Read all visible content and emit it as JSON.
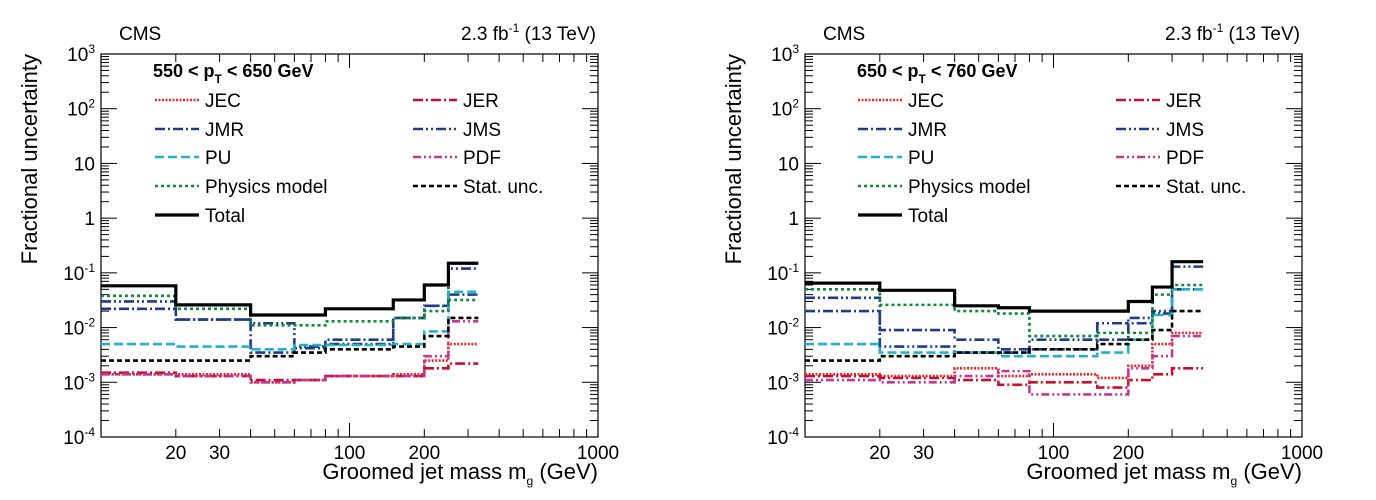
{
  "figure": {
    "y_label": "Fractional uncertainty",
    "x_label_main": "Groomed jet mass m",
    "x_label_sub": "g",
    "x_label_unit": " (GeV)",
    "y_ticks": [
      {
        "base": "10",
        "exp": "3",
        "value": 1000
      },
      {
        "base": "10",
        "exp": "2",
        "value": 100
      },
      {
        "base": "10",
        "exp": "",
        "value": 10
      },
      {
        "base": "1",
        "exp": "",
        "value": 1
      },
      {
        "base": "10",
        "exp": "-1",
        "value": 0.1
      },
      {
        "base": "10",
        "exp": "-2",
        "value": 0.01
      },
      {
        "base": "10",
        "exp": "-3",
        "value": 0.001
      },
      {
        "base": "10",
        "exp": "-4",
        "value": 0.0001
      }
    ],
    "x_ticks": [
      "20",
      "30",
      "100",
      "200",
      "1000"
    ],
    "x_tick_values": [
      20,
      30,
      100,
      200,
      1000
    ],
    "lumi_text_a": "2.3 fb",
    "lumi_text_sup": "-1",
    "lumi_text_b": " (13 TeV)",
    "experiment": "CMS"
  },
  "chart_data": [
    {
      "type": "line",
      "pt_bin_a": "550 < p",
      "pt_bin_sub": "T",
      "pt_bin_b": " < 650 GeV",
      "xlim": [
        10,
        1000
      ],
      "ylim": [
        0.0001,
        1000
      ],
      "x_scale": "log",
      "y_scale": "log",
      "bin_edges": [
        10,
        20,
        40,
        60,
        80,
        150,
        200,
        250,
        330
      ],
      "series": [
        {
          "name": "JEC",
          "color": "#e8282a",
          "dash": "2,1.5",
          "values": [
            0.0014,
            0.0014,
            0.001,
            0.0011,
            0.0013,
            0.0014,
            0.0025,
            0.005
          ]
        },
        {
          "name": "JER",
          "color": "#c8102e",
          "dash": "10,3,2,3",
          "values": [
            0.0015,
            0.0013,
            0.0011,
            0.0011,
            0.0013,
            0.0013,
            0.0018,
            0.0022
          ]
        },
        {
          "name": "JMR",
          "color": "#1f3c88",
          "dash": "10,3,2,3",
          "values": [
            0.022,
            0.014,
            0.0035,
            0.0042,
            0.006,
            0.015,
            0.025,
            0.04
          ]
        },
        {
          "name": "JMS",
          "color": "#1f3c88",
          "dash": "10,3,2,3,2,3",
          "values": [
            0.03,
            0.014,
            0.012,
            0.0045,
            0.005,
            0.015,
            0.025,
            0.12
          ]
        },
        {
          "name": "PU",
          "color": "#21b3c6",
          "dash": "9,4",
          "values": [
            0.005,
            0.0045,
            0.004,
            0.0048,
            0.0048,
            0.005,
            0.0085,
            0.045
          ]
        },
        {
          "name": "PDF",
          "color": "#c0369b",
          "dash": "8,3,2,3,2,3",
          "values": [
            0.0014,
            0.0013,
            0.001,
            0.0011,
            0.0013,
            0.0013,
            0.003,
            0.013
          ]
        },
        {
          "name": "Physics model",
          "color": "#0e8a3f",
          "dash": "3,3",
          "values": [
            0.038,
            0.022,
            0.011,
            0.011,
            0.013,
            0.015,
            0.02,
            0.032
          ]
        },
        {
          "name": "Stat. unc.",
          "color": "#000000",
          "dash": "5,3",
          "values": [
            0.0025,
            0.0025,
            0.003,
            0.0035,
            0.004,
            0.0045,
            0.007,
            0.015
          ]
        },
        {
          "name": "Total",
          "color": "#000000",
          "dash": "",
          "values": [
            0.058,
            0.026,
            0.017,
            0.017,
            0.022,
            0.032,
            0.06,
            0.15
          ]
        }
      ]
    },
    {
      "type": "line",
      "pt_bin_a": "650 < p",
      "pt_bin_sub": "T",
      "pt_bin_b": " < 760 GeV",
      "xlim": [
        10,
        1000
      ],
      "ylim": [
        0.0001,
        1000
      ],
      "x_scale": "log",
      "y_scale": "log",
      "bin_edges": [
        10,
        20,
        40,
        60,
        80,
        150,
        200,
        250,
        300,
        400
      ],
      "series": [
        {
          "name": "JEC",
          "color": "#e8282a",
          "dash": "2,1.5",
          "values": [
            0.0014,
            0.0013,
            0.0018,
            0.0013,
            0.0014,
            0.0012,
            0.002,
            0.005,
            0.008
          ]
        },
        {
          "name": "JER",
          "color": "#c8102e",
          "dash": "10,3,2,3",
          "values": [
            0.0013,
            0.0012,
            0.0011,
            0.0009,
            0.001,
            0.0008,
            0.0011,
            0.0014,
            0.0018
          ]
        },
        {
          "name": "JMR",
          "color": "#1f3c88",
          "dash": "10,3,2,3",
          "values": [
            0.02,
            0.009,
            0.006,
            0.004,
            0.004,
            0.006,
            0.012,
            0.018,
            0.05
          ]
        },
        {
          "name": "JMS",
          "color": "#1f3c88",
          "dash": "10,3,2,3,2,3",
          "values": [
            0.035,
            0.0045,
            0.0035,
            0.0035,
            0.006,
            0.012,
            0.015,
            0.02,
            0.13
          ]
        },
        {
          "name": "PU",
          "color": "#21b3c6",
          "dash": "9,4",
          "values": [
            0.005,
            0.0035,
            0.0035,
            0.003,
            0.003,
            0.0035,
            0.006,
            0.017,
            0.05
          ]
        },
        {
          "name": "PDF",
          "color": "#c0369b",
          "dash": "8,3,2,3,2,3",
          "values": [
            0.0011,
            0.001,
            0.0013,
            0.0016,
            0.0006,
            0.0006,
            0.0018,
            0.003,
            0.007
          ]
        },
        {
          "name": "Physics model",
          "color": "#0e8a3f",
          "dash": "3,3",
          "values": [
            0.05,
            0.026,
            0.02,
            0.018,
            0.007,
            0.008,
            0.008,
            0.04,
            0.06
          ]
        },
        {
          "name": "Stat. unc.",
          "color": "#000000",
          "dash": "5,3",
          "values": [
            0.0025,
            0.003,
            0.0035,
            0.0035,
            0.004,
            0.005,
            0.006,
            0.009,
            0.02
          ]
        },
        {
          "name": "Total",
          "color": "#000000",
          "dash": "",
          "values": [
            0.065,
            0.048,
            0.025,
            0.023,
            0.02,
            0.02,
            0.03,
            0.055,
            0.16
          ]
        }
      ]
    }
  ],
  "legend": {
    "left_column": [
      "JEC",
      "JMR",
      "PU",
      "Physics model",
      "Total"
    ],
    "right_column": [
      "JER",
      "JMS",
      "PDF",
      "Stat. unc."
    ]
  }
}
